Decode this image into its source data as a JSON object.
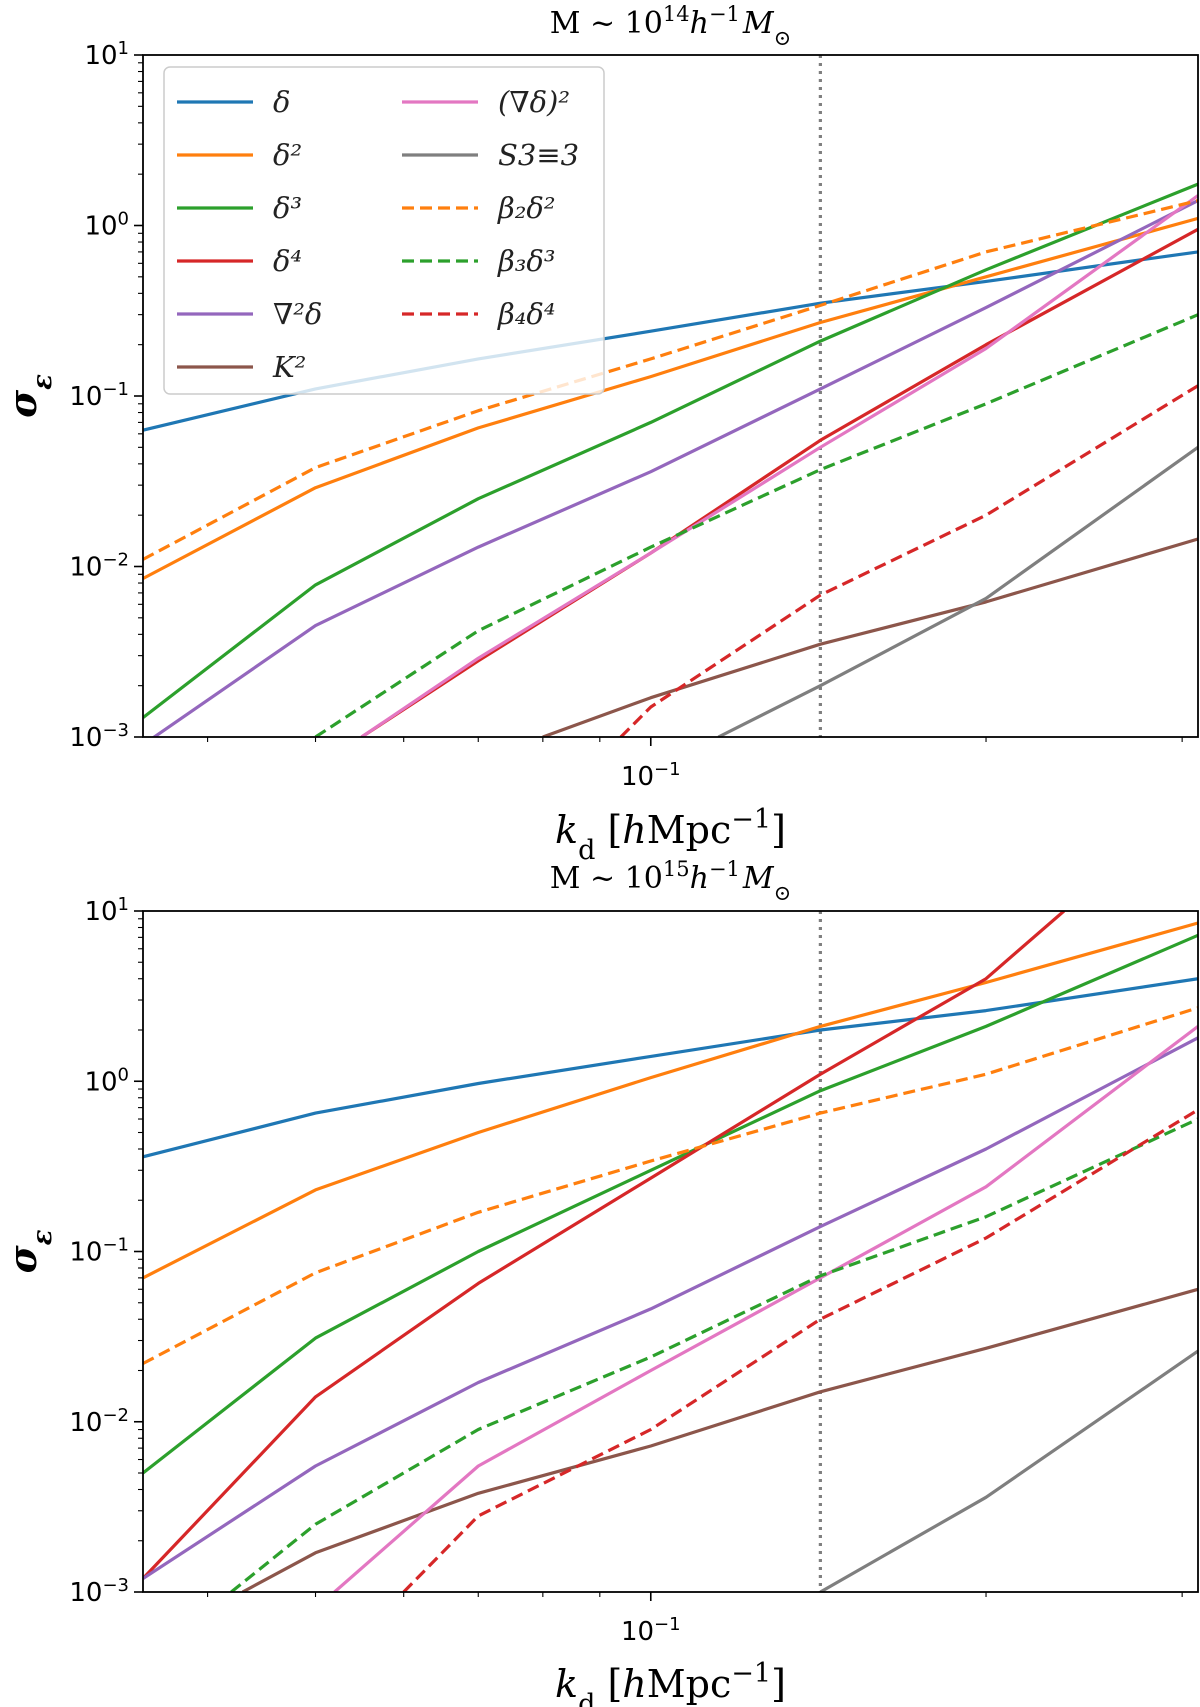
{
  "chart_data": [
    {
      "type": "line",
      "title": "M ~ 10^14 h^-1 M_⊙",
      "title_parts": [
        "M ~ 10",
        "14",
        "h",
        "−1",
        "M",
        "⊙"
      ],
      "xlabel": "k_d [hMpc^-1]",
      "ylabel": "σ_ε",
      "xscale": "log",
      "yscale": "log",
      "xlim": [
        0.035,
        0.31
      ],
      "ylim": [
        0.001,
        10
      ],
      "x_tick_labels": [
        {
          "value": 0.1,
          "label": "10^-1"
        }
      ],
      "y_tick_labels": [
        {
          "value": 0.001,
          "label": "10^-3"
        },
        {
          "value": 0.01,
          "label": "10^-2"
        },
        {
          "value": 0.1,
          "label": "10^-1"
        },
        {
          "value": 1,
          "label": "10^0"
        },
        {
          "value": 10,
          "label": "10^1"
        }
      ],
      "vline": 0.142,
      "legend": "upper-left",
      "series": [
        {
          "name": "δ",
          "color": "#1f77b4",
          "dash": "solid",
          "x": [
            0.035,
            0.05,
            0.07,
            0.1,
            0.142,
            0.2,
            0.31
          ],
          "y": [
            0.063,
            0.11,
            0.165,
            0.24,
            0.35,
            0.47,
            0.7
          ]
        },
        {
          "name": "δ²",
          "color": "#ff7f0e",
          "dash": "solid",
          "x": [
            0.035,
            0.05,
            0.07,
            0.1,
            0.142,
            0.2,
            0.31
          ],
          "y": [
            0.0085,
            0.029,
            0.065,
            0.13,
            0.27,
            0.5,
            1.1
          ]
        },
        {
          "name": "δ³",
          "color": "#2ca02c",
          "dash": "solid",
          "x": [
            0.035,
            0.05,
            0.07,
            0.1,
            0.142,
            0.2,
            0.31
          ],
          "y": [
            0.0013,
            0.0078,
            0.025,
            0.07,
            0.21,
            0.55,
            1.75
          ]
        },
        {
          "name": "δ⁴",
          "color": "#d62728",
          "dash": "solid",
          "x": [
            0.055,
            0.07,
            0.1,
            0.142,
            0.2,
            0.31
          ],
          "y": [
            0.001,
            0.0028,
            0.012,
            0.055,
            0.2,
            0.95
          ]
        },
        {
          "name": "∇²δ",
          "color": "#9467bd",
          "dash": "solid",
          "x": [
            0.035,
            0.05,
            0.07,
            0.1,
            0.142,
            0.2,
            0.31
          ],
          "y": [
            0.0009,
            0.0045,
            0.013,
            0.036,
            0.11,
            0.33,
            1.4
          ]
        },
        {
          "name": "K²",
          "color": "#8c564b",
          "dash": "solid",
          "x": [
            0.08,
            0.1,
            0.142,
            0.2,
            0.31
          ],
          "y": [
            0.001,
            0.0017,
            0.0035,
            0.0062,
            0.0145
          ]
        },
        {
          "name": "(∇δ)²",
          "color": "#e377c2",
          "dash": "solid",
          "x": [
            0.055,
            0.07,
            0.1,
            0.142,
            0.2,
            0.31
          ],
          "y": [
            0.001,
            0.0029,
            0.012,
            0.05,
            0.19,
            1.5
          ]
        },
        {
          "name": "S_{3≡3}",
          "color": "#7f7f7f",
          "dash": "solid",
          "x": [
            0.115,
            0.142,
            0.2,
            0.31
          ],
          "y": [
            0.001,
            0.002,
            0.0065,
            0.05
          ]
        },
        {
          "name": "β₂δ²",
          "color": "#ff7f0e",
          "dash": "dashed",
          "x": [
            0.035,
            0.05,
            0.07,
            0.1,
            0.142,
            0.2,
            0.31
          ],
          "y": [
            0.011,
            0.038,
            0.082,
            0.165,
            0.34,
            0.7,
            1.4
          ]
        },
        {
          "name": "β₃δ³",
          "color": "#2ca02c",
          "dash": "dashed",
          "x": [
            0.05,
            0.07,
            0.1,
            0.142,
            0.2,
            0.31
          ],
          "y": [
            0.001,
            0.0042,
            0.013,
            0.037,
            0.09,
            0.3
          ]
        },
        {
          "name": "β₄δ⁴",
          "color": "#d62728",
          "dash": "dashed",
          "x": [
            0.094,
            0.1,
            0.142,
            0.2,
            0.31
          ],
          "y": [
            0.001,
            0.0015,
            0.0068,
            0.02,
            0.115
          ]
        }
      ]
    },
    {
      "type": "line",
      "title": "M ~ 10^15 h^-1 M_⊙",
      "title_parts": [
        "M ~ 10",
        "15",
        "h",
        "−1",
        "M",
        "⊙"
      ],
      "xlabel": "k_d [hMpc^-1]",
      "ylabel": "σ_ε",
      "xscale": "log",
      "yscale": "log",
      "xlim": [
        0.035,
        0.31
      ],
      "ylim": [
        0.001,
        10
      ],
      "x_tick_labels": [
        {
          "value": 0.1,
          "label": "10^-1"
        }
      ],
      "y_tick_labels": [
        {
          "value": 0.001,
          "label": "10^-3"
        },
        {
          "value": 0.01,
          "label": "10^-2"
        },
        {
          "value": 0.1,
          "label": "10^-1"
        },
        {
          "value": 1,
          "label": "10^0"
        },
        {
          "value": 10,
          "label": "10^1"
        }
      ],
      "vline": 0.142,
      "series": [
        {
          "name": "δ",
          "color": "#1f77b4",
          "dash": "solid",
          "x": [
            0.035,
            0.05,
            0.07,
            0.1,
            0.142,
            0.2,
            0.31
          ],
          "y": [
            0.36,
            0.65,
            0.97,
            1.4,
            2.0,
            2.6,
            4.0
          ]
        },
        {
          "name": "δ²",
          "color": "#ff7f0e",
          "dash": "solid",
          "x": [
            0.035,
            0.05,
            0.07,
            0.1,
            0.142,
            0.2,
            0.31
          ],
          "y": [
            0.07,
            0.23,
            0.5,
            1.05,
            2.1,
            3.8,
            8.5
          ]
        },
        {
          "name": "δ³",
          "color": "#2ca02c",
          "dash": "solid",
          "x": [
            0.035,
            0.05,
            0.07,
            0.1,
            0.142,
            0.2,
            0.31
          ],
          "y": [
            0.005,
            0.031,
            0.1,
            0.3,
            0.88,
            2.1,
            7.2
          ]
        },
        {
          "name": "δ⁴",
          "color": "#d62728",
          "dash": "solid",
          "x": [
            0.035,
            0.05,
            0.07,
            0.1,
            0.142,
            0.2,
            0.235
          ],
          "y": [
            0.0012,
            0.014,
            0.065,
            0.27,
            1.1,
            4.0,
            10.0
          ]
        },
        {
          "name": "∇²δ",
          "color": "#9467bd",
          "dash": "solid",
          "x": [
            0.035,
            0.05,
            0.07,
            0.1,
            0.142,
            0.2,
            0.31
          ],
          "y": [
            0.0012,
            0.0055,
            0.017,
            0.046,
            0.14,
            0.4,
            1.8
          ]
        },
        {
          "name": "K²",
          "color": "#8c564b",
          "dash": "solid",
          "x": [
            0.043,
            0.05,
            0.07,
            0.1,
            0.142,
            0.2,
            0.31
          ],
          "y": [
            0.001,
            0.0017,
            0.0038,
            0.0072,
            0.015,
            0.027,
            0.06
          ]
        },
        {
          "name": "(∇δ)²",
          "color": "#e377c2",
          "dash": "solid",
          "x": [
            0.052,
            0.07,
            0.1,
            0.142,
            0.2,
            0.31
          ],
          "y": [
            0.001,
            0.0055,
            0.02,
            0.07,
            0.24,
            2.1
          ]
        },
        {
          "name": "S_{3≡3}",
          "color": "#7f7f7f",
          "dash": "solid",
          "x": [
            0.142,
            0.2,
            0.31
          ],
          "y": [
            0.001,
            0.0036,
            0.026
          ]
        },
        {
          "name": "β₂δ²",
          "color": "#ff7f0e",
          "dash": "dashed",
          "x": [
            0.035,
            0.05,
            0.07,
            0.1,
            0.142,
            0.2,
            0.31
          ],
          "y": [
            0.022,
            0.075,
            0.17,
            0.34,
            0.65,
            1.1,
            2.7
          ]
        },
        {
          "name": "β₃δ³",
          "color": "#2ca02c",
          "dash": "dashed",
          "x": [
            0.042,
            0.05,
            0.07,
            0.1,
            0.142,
            0.2,
            0.31
          ],
          "y": [
            0.001,
            0.0025,
            0.009,
            0.024,
            0.072,
            0.16,
            0.6
          ]
        },
        {
          "name": "β₄δ⁴",
          "color": "#d62728",
          "dash": "dashed",
          "x": [
            0.06,
            0.07,
            0.1,
            0.142,
            0.2,
            0.31
          ],
          "y": [
            0.001,
            0.0028,
            0.009,
            0.04,
            0.12,
            0.68
          ]
        }
      ]
    }
  ]
}
